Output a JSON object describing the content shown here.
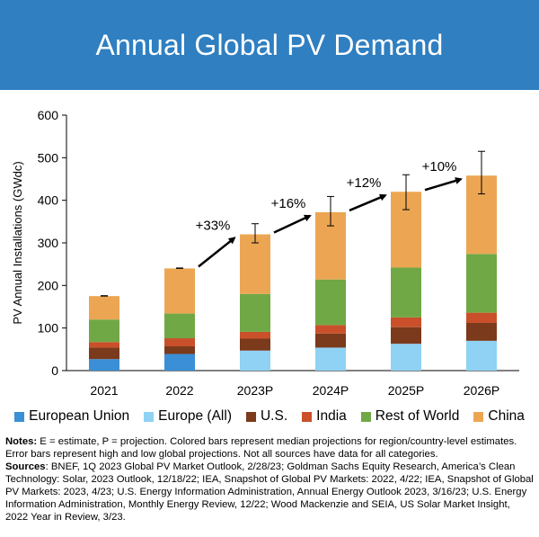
{
  "title": "Annual Global PV Demand",
  "colors": {
    "banner": "#2f7fc1",
    "European Union": "#3b8fd6",
    "Europe (All)": "#8fd2f4",
    "U.S.": "#7b3a1c",
    "India": "#c9502a",
    "Rest of World": "#70a845",
    "China": "#eca653"
  },
  "chart_data": {
    "type": "bar",
    "stacked": true,
    "ylabel": "PV Annual Installations (GWdc)",
    "ylim": [
      0,
      600
    ],
    "yticks": [
      0,
      100,
      200,
      300,
      400,
      500,
      600
    ],
    "categories": [
      "2021",
      "2022",
      "2023P",
      "2024P",
      "2025P",
      "2026P"
    ],
    "series": [
      {
        "name": "European Union",
        "values": [
          27,
          39,
          null,
          null,
          null,
          null
        ]
      },
      {
        "name": "Europe (All)",
        "values": [
          null,
          null,
          47,
          54,
          63,
          70
        ]
      },
      {
        "name": "U.S.",
        "values": [
          27,
          18,
          28,
          33,
          39,
          42
        ]
      },
      {
        "name": "India",
        "values": [
          13,
          19,
          16,
          20,
          23,
          24
        ]
      },
      {
        "name": "Rest of World",
        "values": [
          53,
          58,
          89,
          107,
          117,
          138
        ]
      },
      {
        "name": "China",
        "values": [
          55,
          106,
          140,
          158,
          178,
          184
        ]
      }
    ],
    "totals": [
      175,
      240,
      320,
      372,
      420,
      458
    ],
    "error_bars": [
      {
        "low": 175,
        "high": 176
      },
      {
        "low": 240,
        "high": 241
      },
      {
        "low": 300,
        "high": 345
      },
      {
        "low": 340,
        "high": 409
      },
      {
        "low": 378,
        "high": 460
      },
      {
        "low": 415,
        "high": 515
      }
    ],
    "annotations": [
      {
        "text": "+33%",
        "from": "2022",
        "to": "2023P"
      },
      {
        "text": "+16%",
        "from": "2023P",
        "to": "2024P"
      },
      {
        "text": "+12%",
        "from": "2024P",
        "to": "2025P"
      },
      {
        "text": "+10%",
        "from": "2025P",
        "to": "2026P"
      }
    ]
  },
  "legend": [
    "European Union",
    "Europe (All)",
    "U.S.",
    "India",
    "Rest of World",
    "China"
  ],
  "notes": {
    "notes_label": "Notes:",
    "notes_text": " E = estimate, P = projection. Colored bars represent median projections for region/country-level estimates. Error bars represent high and low global projections. Not all sources have data for all categories.",
    "sources_label": "Sources",
    "sources_text": ": BNEF, 1Q 2023 Global PV Market Outlook, 2/28/23; Goldman Sachs Equity Research, America’s Clean Technology: Solar, 2023 Outlook, 12/18/22; IEA, Snapshot of Global PV Markets: 2022, 4/22; IEA, Snapshot of Global PV Markets: 2023, 4/23; U.S. Energy Information Administration, Annual Energy Outlook 2023, 3/16/23; U.S. Energy Information Administration, Monthly Energy Review, 12/22; Wood Mackenzie and SEIA, US Solar Market Insight, 2022 Year in Review, 3/23."
  }
}
